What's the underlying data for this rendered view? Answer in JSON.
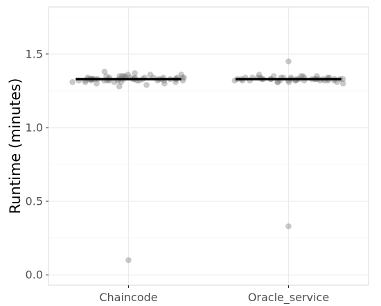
{
  "chart_data": {
    "type": "scatter",
    "title": "",
    "xlabel": "",
    "ylabel": "Runtime (minutes)",
    "categories": [
      "Chaincode",
      "Oracle_service"
    ],
    "ylim": [
      -0.07,
      1.82
    ],
    "yticks": [
      0.0,
      0.5,
      1.0,
      1.5
    ],
    "ytick_labels": [
      "0.0",
      "0.5",
      "1.0",
      "1.5"
    ],
    "grid": true,
    "legend": "none",
    "series": [
      {
        "category": "Chaincode",
        "summary_line": 1.33,
        "values": [
          1.33,
          1.32,
          1.34,
          1.31,
          1.35,
          1.33,
          1.32,
          1.34,
          1.33,
          1.36,
          1.3,
          1.33,
          1.34,
          1.32,
          1.35,
          1.33,
          1.31,
          1.34,
          1.33,
          1.32,
          1.37,
          1.29,
          1.33,
          1.34,
          1.32,
          1.36,
          1.31,
          1.33,
          1.35,
          1.32,
          1.34,
          1.38,
          1.28,
          1.33,
          1.32,
          1.34,
          1.31,
          1.35,
          1.33,
          1.32,
          1.34,
          1.33,
          1.3,
          1.36,
          1.33,
          1.32,
          1.34,
          1.33,
          1.31,
          1.35,
          1.32,
          1.34,
          1.33,
          1.32,
          1.33,
          1.34,
          1.33,
          1.32,
          1.33,
          1.33,
          0.1
        ]
      },
      {
        "category": "Oracle_service",
        "summary_line": 1.33,
        "values": [
          1.33,
          1.32,
          1.34,
          1.33,
          1.32,
          1.35,
          1.31,
          1.33,
          1.34,
          1.32,
          1.33,
          1.35,
          1.31,
          1.34,
          1.33,
          1.32,
          1.36,
          1.3,
          1.33,
          1.34,
          1.32,
          1.33,
          1.35,
          1.31,
          1.34,
          1.33,
          1.32,
          1.33,
          1.34,
          1.33,
          1.32,
          1.35,
          1.31,
          1.33,
          1.34,
          1.32,
          1.33,
          1.34,
          1.33,
          1.32,
          1.33,
          1.34,
          1.33,
          1.32,
          1.33,
          1.33,
          1.32,
          1.34,
          1.33,
          1.32,
          1.45,
          0.33
        ]
      }
    ],
    "colors": {
      "point": "#7f7f7f",
      "summary": "#000000",
      "grid_major": "#ebebeb",
      "grid_minor": "#f5f5f5",
      "panel_border": "#d9d9d9",
      "tick_text": "#4d4d4d"
    }
  }
}
